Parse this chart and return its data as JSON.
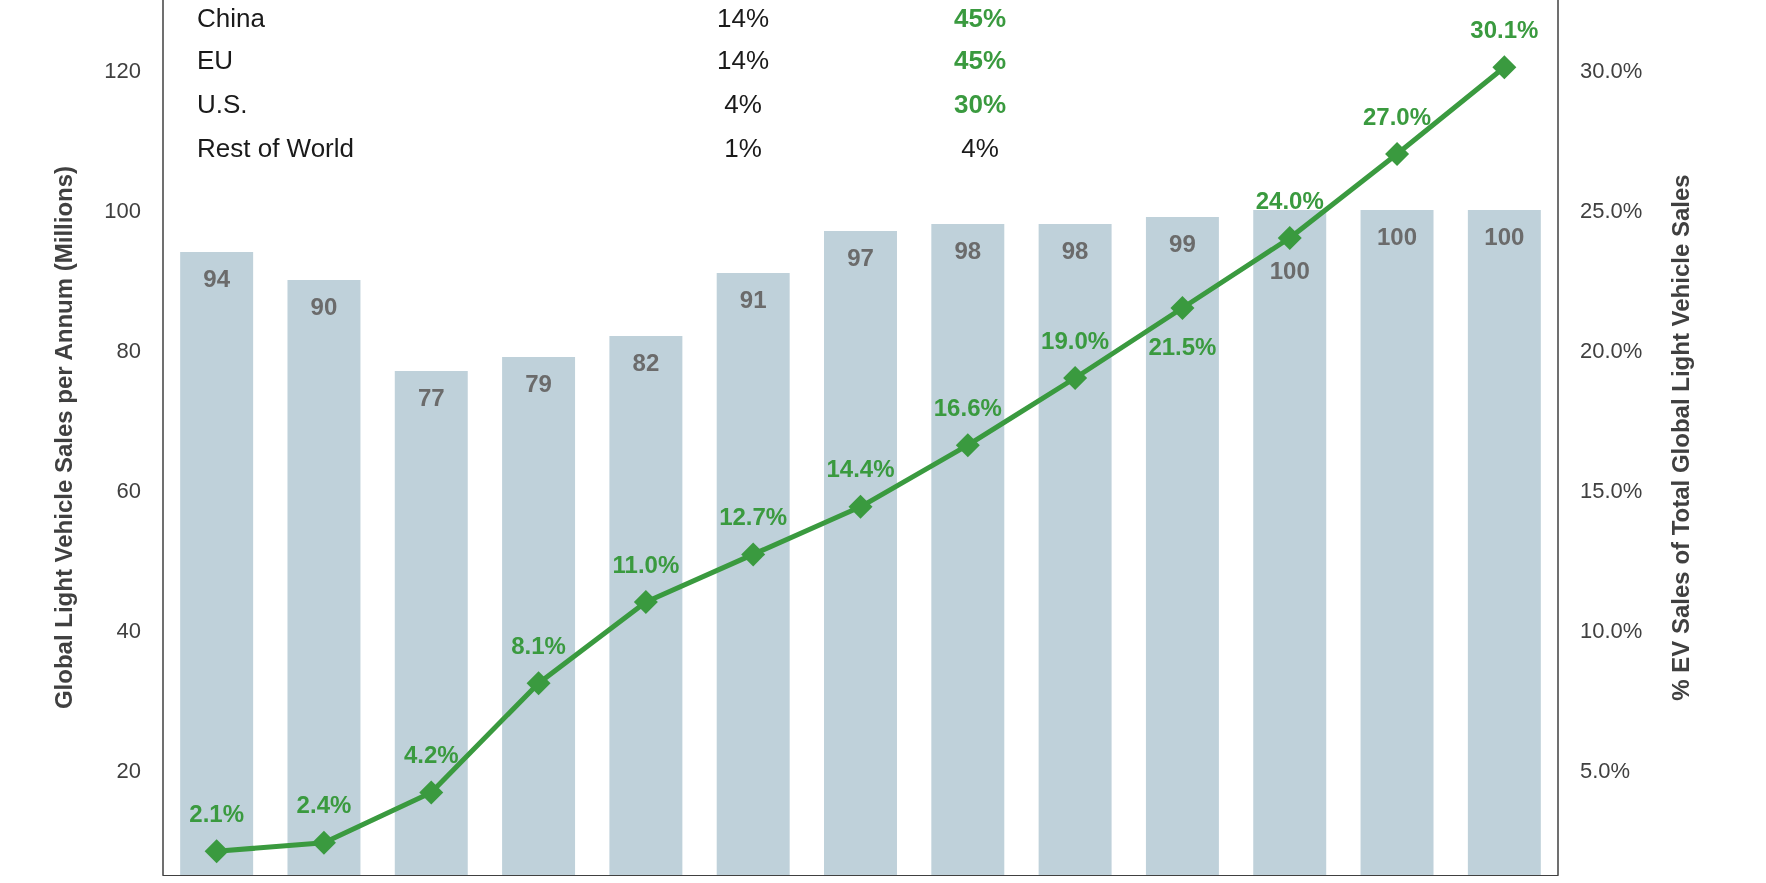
{
  "chart_data": {
    "type": "bar",
    "ylabel": "Global Light Vehicle Sales per Annum (Millions)",
    "y2label": "% EV Sales of Total Global Light Vehicle Sales",
    "categories": [
      null,
      null,
      null,
      null,
      null,
      null,
      null,
      null,
      null,
      null,
      null,
      null,
      null
    ],
    "series": [
      {
        "color": "#bfd1da",
        "values": [
          94,
          90,
          77,
          79,
          82,
          91,
          97,
          98,
          98,
          99,
          100,
          100,
          100
        ]
      },
      {
        "type": "line",
        "axis": "y2",
        "color": "#3a9a3f",
        "marker": "diamond",
        "values": [
          2.1,
          2.4,
          4.2,
          8.1,
          11.0,
          12.7,
          14.4,
          16.6,
          19.0,
          21.5,
          24.0,
          27.0,
          30.1
        ],
        "value_labels": [
          "2.1%",
          "2.4%",
          "4.2%",
          "8.1%",
          "11.0%",
          "12.7%",
          "14.4%",
          "16.6%",
          "19.0%",
          "21.5%",
          "24.0%",
          "27.0%",
          "30.1%"
        ]
      }
    ],
    "data_labels": true,
    "ylim": [
      5,
      130
    ],
    "yticks": [
      20,
      40,
      60,
      80,
      100,
      120
    ],
    "y2lim": [
      1.25,
      32.5
    ],
    "y2ticks": [
      {
        "value": 5,
        "label": "5.0%"
      },
      {
        "value": 10,
        "label": "10.0%"
      },
      {
        "value": 15,
        "label": "15.0%"
      },
      {
        "value": 20,
        "label": "20.0%"
      },
      {
        "value": 25,
        "label": "25.0%"
      },
      {
        "value": 30,
        "label": "30.0%"
      }
    ],
    "grid": false,
    "annotations": [
      "China",
      "14%",
      "45%",
      "EU",
      "14%",
      "45%",
      "U.S.",
      "4%",
      "30%",
      "Rest of World",
      "1%",
      "4%"
    ]
  }
}
